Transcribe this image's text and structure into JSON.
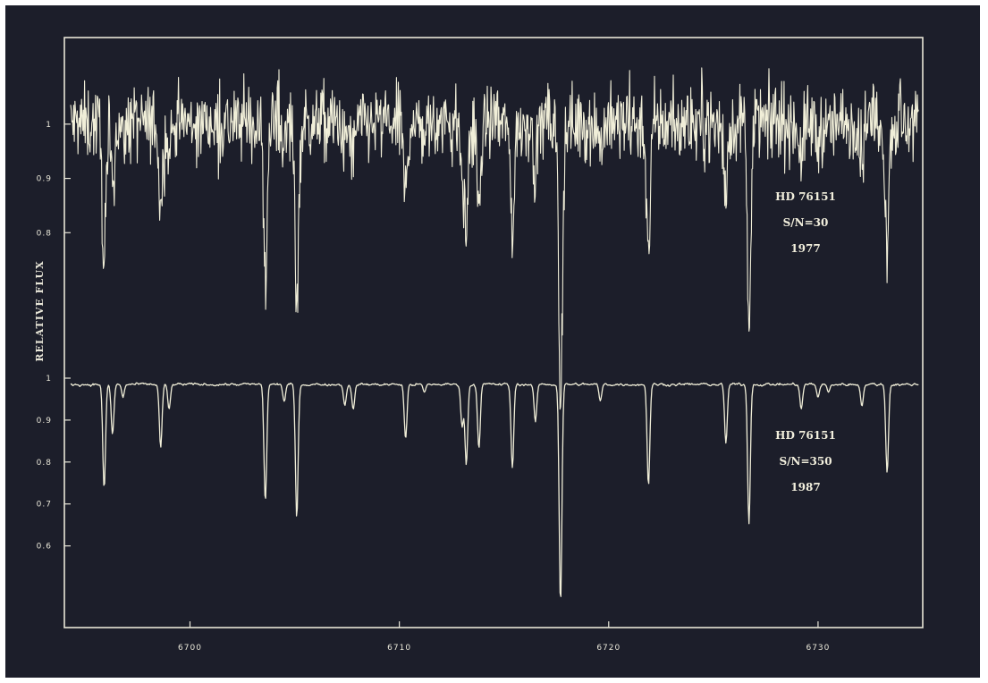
{
  "chart_data": {
    "type": "line",
    "title": "",
    "xlabel": "",
    "ylabel": "RELATIVE FLUX",
    "xlim": [
      6694,
      6735
    ],
    "x_ticks": [
      6700,
      6710,
      6720,
      6730
    ],
    "x_tick_labels": [
      "6700",
      "6710",
      "6720",
      "6730"
    ],
    "grid": false,
    "legend": "none",
    "line_color": "#f0eed8",
    "background_color": "#1c1e2a",
    "panels": [
      {
        "name": "upper",
        "ylim": [
          0.56,
          1.12
        ],
        "y_ticks": [
          1.0,
          0.9,
          0.8
        ],
        "y_tick_labels": [
          "1",
          "0.9",
          "0.8"
        ],
        "annotation": [
          "HD 76151",
          "S/N=30",
          "1977"
        ],
        "noise_amplitude": 0.035,
        "continuum": 1.0
      },
      {
        "name": "lower",
        "ylim": [
          0.45,
          1.0
        ],
        "y_ticks": [
          1.0,
          0.9,
          0.8,
          0.7,
          0.6
        ],
        "y_tick_labels": [
          "1",
          "0.9",
          "0.8",
          "0.7",
          "0.6"
        ],
        "annotation": [
          "HD 76151",
          "S/N=350",
          "1987"
        ],
        "noise_amplitude": 0.004,
        "continuum": 0.985
      }
    ],
    "absorption_lines": [
      {
        "x": 6695.9,
        "depth": 0.25
      },
      {
        "x": 6696.3,
        "depth": 0.12
      },
      {
        "x": 6696.8,
        "depth": 0.03
      },
      {
        "x": 6698.6,
        "depth": 0.15
      },
      {
        "x": 6699.0,
        "depth": 0.06
      },
      {
        "x": 6703.6,
        "depth": 0.28
      },
      {
        "x": 6704.5,
        "depth": 0.04
      },
      {
        "x": 6705.1,
        "depth": 0.32
      },
      {
        "x": 6707.4,
        "depth": 0.05
      },
      {
        "x": 6707.8,
        "depth": 0.06
      },
      {
        "x": 6710.3,
        "depth": 0.13
      },
      {
        "x": 6711.2,
        "depth": 0.02
      },
      {
        "x": 6713.0,
        "depth": 0.1
      },
      {
        "x": 6713.2,
        "depth": 0.19
      },
      {
        "x": 6713.8,
        "depth": 0.15
      },
      {
        "x": 6715.4,
        "depth": 0.2
      },
      {
        "x": 6716.5,
        "depth": 0.09
      },
      {
        "x": 6717.7,
        "depth": 0.52
      },
      {
        "x": 6719.6,
        "depth": 0.04
      },
      {
        "x": 6721.9,
        "depth": 0.24
      },
      {
        "x": 6725.6,
        "depth": 0.14
      },
      {
        "x": 6726.7,
        "depth": 0.33
      },
      {
        "x": 6729.2,
        "depth": 0.06
      },
      {
        "x": 6730.0,
        "depth": 0.03
      },
      {
        "x": 6730.5,
        "depth": 0.02
      },
      {
        "x": 6732.1,
        "depth": 0.05
      },
      {
        "x": 6733.3,
        "depth": 0.21
      }
    ],
    "x_data_range": [
      6694.3,
      6734.8
    ]
  }
}
